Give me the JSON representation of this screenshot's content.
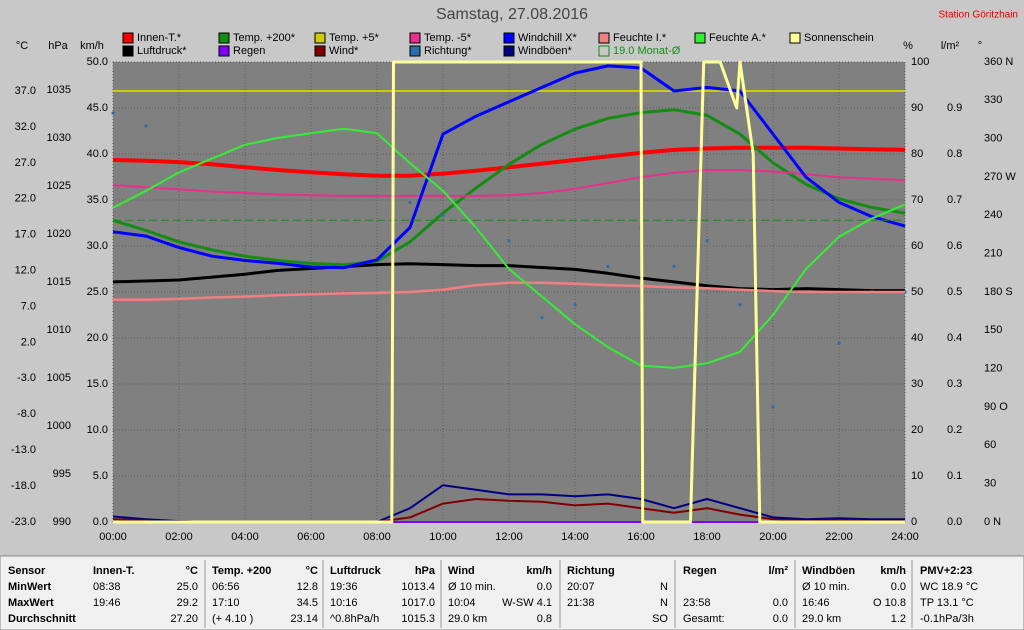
{
  "chart_data": {
    "type": "line",
    "title": "Samstag, 27.08.2016",
    "station": "Station Göritzhain",
    "x": [
      0,
      1,
      2,
      3,
      4,
      5,
      6,
      7,
      8,
      9,
      10,
      11,
      12,
      13,
      14,
      15,
      16,
      17,
      18,
      19,
      20,
      21,
      22,
      23,
      24
    ],
    "xlim": [
      0,
      24
    ],
    "xticks": [
      {
        "value": 0,
        "label": "00:00"
      },
      {
        "value": 2,
        "label": "02:00"
      },
      {
        "value": 4,
        "label": "04:00"
      },
      {
        "value": 6,
        "label": "06:00"
      },
      {
        "value": 8,
        "label": "08:00"
      },
      {
        "value": 10,
        "label": "10:00"
      },
      {
        "value": 12,
        "label": "12:00"
      },
      {
        "value": 14,
        "label": "14:00"
      },
      {
        "value": 16,
        "label": "16:00"
      },
      {
        "value": 18,
        "label": "18:00"
      },
      {
        "value": 20,
        "label": "20:00"
      },
      {
        "value": 22,
        "label": "22:00"
      },
      {
        "value": 24,
        "label": "24:00"
      }
    ],
    "grid": true,
    "axes": [
      {
        "id": "c",
        "label": "°C",
        "lim": [
          -23,
          41.04
        ],
        "ticks": [
          {
            "value": -23,
            "label": "-23.0"
          },
          {
            "value": -18,
            "label": "-18.0"
          },
          {
            "value": -13,
            "label": "-13.0"
          },
          {
            "value": -8,
            "label": "-8.0"
          },
          {
            "value": -3,
            "label": "-3.0"
          },
          {
            "value": 2,
            "label": "2.0"
          },
          {
            "value": 7,
            "label": "7.0"
          },
          {
            "value": 12,
            "label": "12.0"
          },
          {
            "value": 17,
            "label": "17.0"
          },
          {
            "value": 22,
            "label": "22.0"
          },
          {
            "value": 27,
            "label": "27.0"
          },
          {
            "value": 32,
            "label": "32.0"
          },
          {
            "value": 37,
            "label": "37.0"
          }
        ]
      },
      {
        "id": "p",
        "label": "hPa",
        "lim": [
          990,
          1037.9
        ],
        "ticks": [
          990,
          995,
          1000,
          1005,
          1010,
          1015,
          1020,
          1025,
          1030,
          1035
        ]
      },
      {
        "id": "w",
        "label": "km/h",
        "lim": [
          0,
          50
        ],
        "ticks": [
          {
            "value": 0,
            "label": "0.0"
          },
          {
            "value": 5,
            "label": "5.0"
          },
          {
            "value": 10,
            "label": "10.0"
          },
          {
            "value": 15,
            "label": "15.0"
          },
          {
            "value": 20,
            "label": "20.0"
          },
          {
            "value": 25,
            "label": "25.0"
          },
          {
            "value": 30,
            "label": "30.0"
          },
          {
            "value": 35,
            "label": "35.0"
          },
          {
            "value": 40,
            "label": "40.0"
          },
          {
            "value": 45,
            "label": "45.0"
          },
          {
            "value": 50,
            "label": "50.0"
          }
        ]
      },
      {
        "id": "h",
        "label": "%",
        "lim": [
          0,
          100
        ],
        "ticks": [
          0,
          10,
          20,
          30,
          40,
          50,
          60,
          70,
          80,
          90,
          100
        ]
      },
      {
        "id": "r",
        "label": "l/m²",
        "lim": [
          0,
          1.0
        ],
        "ticks": [
          {
            "value": 0,
            "label": "0.0"
          },
          {
            "value": 0.1,
            "label": "0.1"
          },
          {
            "value": 0.2,
            "label": "0.2"
          },
          {
            "value": 0.3,
            "label": "0.3"
          },
          {
            "value": 0.4,
            "label": "0.4"
          },
          {
            "value": 0.5,
            "label": "0.5"
          },
          {
            "value": 0.6,
            "label": "0.6"
          },
          {
            "value": 0.7,
            "label": "0.7"
          },
          {
            "value": 0.8,
            "label": "0.8"
          },
          {
            "value": 0.9,
            "label": "0.9"
          }
        ]
      },
      {
        "id": "d",
        "label": "°",
        "lim": [
          0,
          360
        ],
        "ticks": [
          {
            "value": 0,
            "label": "0 N"
          },
          30,
          60,
          {
            "value": 90,
            "label": "90 O"
          },
          120,
          150,
          {
            "value": 180,
            "label": "180 S"
          },
          210,
          240,
          {
            "value": 270,
            "label": "270 W"
          },
          300,
          330,
          {
            "value": 360,
            "label": "360 N"
          }
        ]
      }
    ],
    "series": [
      {
        "name": "Innen-T.*",
        "color": "#ff0000",
        "axis": "c",
        "width": 4,
        "values": [
          27.4,
          27.3,
          27.1,
          26.8,
          26.4,
          26.0,
          25.7,
          25.4,
          25.2,
          25.2,
          25.5,
          25.9,
          26.4,
          26.9,
          27.4,
          27.9,
          28.4,
          28.8,
          29.0,
          29.1,
          29.1,
          29.1,
          29.0,
          28.9,
          28.8
        ]
      },
      {
        "name": "Luftdruck*",
        "color": "#000000",
        "axis": "p",
        "width": 3,
        "values": [
          1015.0,
          1015.1,
          1015.2,
          1015.5,
          1015.8,
          1016.2,
          1016.4,
          1016.6,
          1016.8,
          1016.9,
          1016.8,
          1016.7,
          1016.7,
          1016.5,
          1016.3,
          1015.9,
          1015.4,
          1015.0,
          1014.6,
          1014.3,
          1014.2,
          1014.3,
          1014.2,
          1014.1,
          1014.1
        ]
      },
      {
        "name": "Temp. +200*",
        "color": "#148c14",
        "axis": "c",
        "width": 3,
        "values": [
          19.0,
          17.6,
          16.0,
          14.9,
          14.0,
          13.4,
          13.0,
          12.8,
          13.3,
          16.0,
          20.0,
          23.5,
          26.8,
          29.6,
          31.7,
          33.2,
          34.0,
          34.4,
          33.6,
          31.0,
          27.0,
          24.0,
          22.0,
          20.8,
          20.0
        ]
      },
      {
        "name": "Regen",
        "color": "#8000ff",
        "axis": "r",
        "width": 2,
        "values": [
          0,
          0,
          0,
          0,
          0,
          0,
          0,
          0,
          0,
          0,
          0,
          0,
          0,
          0,
          0,
          0,
          0,
          0,
          0,
          0,
          0,
          0,
          0,
          0,
          0
        ]
      },
      {
        "name": "Temp. +5*",
        "color": "#cccc00",
        "axis": "c",
        "width": 2,
        "values": [
          37.0,
          37.0,
          37.0,
          37.0,
          37.0,
          37.0,
          37.0,
          37.0,
          37.0,
          37.0,
          37.0,
          37.0,
          37.0,
          37.0,
          37.0,
          37.0,
          37.0,
          37.0,
          37.0,
          37.0,
          37.0,
          37.0,
          37.0,
          37.0,
          37.0
        ]
      },
      {
        "name": "Wind*",
        "color": "#800000",
        "axis": "w",
        "width": 2,
        "values": [
          0.3,
          0.2,
          0.1,
          0,
          0,
          0,
          0,
          0,
          0,
          0.5,
          2.0,
          2.5,
          2.3,
          2.2,
          1.8,
          2.0,
          1.5,
          1.0,
          1.5,
          0.8,
          0.3,
          0.2,
          0.2,
          0.2,
          0.2
        ]
      },
      {
        "name": "Temp. -5*",
        "color": "#e6308c",
        "axis": "c",
        "width": 2,
        "values": [
          23.9,
          23.6,
          23.3,
          23.0,
          22.8,
          22.6,
          22.5,
          22.4,
          22.4,
          22.4,
          22.4,
          22.4,
          22.5,
          22.8,
          23.4,
          24.2,
          25.0,
          25.6,
          26.0,
          26.0,
          25.8,
          25.4,
          25.0,
          24.8,
          24.6
        ]
      },
      {
        "name": "Richtung*",
        "color": "#2a6eb0",
        "axis": "d",
        "style": "dots",
        "values": [
          320,
          310,
          null,
          null,
          null,
          null,
          null,
          null,
          null,
          250,
          240,
          230,
          220,
          160,
          170,
          200,
          230,
          200,
          220,
          170,
          90,
          null,
          140,
          180,
          180
        ]
      },
      {
        "name": "Windchill X*",
        "color": "#0000ff",
        "axis": "c",
        "width": 3,
        "values": [
          17.4,
          16.8,
          15.2,
          14.0,
          13.4,
          13.0,
          12.5,
          12.4,
          13.5,
          18.0,
          31.0,
          33.5,
          35.5,
          37.5,
          39.5,
          40.5,
          40.2,
          37.0,
          37.5,
          37.0,
          31.0,
          25.0,
          21.5,
          19.5,
          18.2
        ]
      },
      {
        "name": "Windböen*",
        "color": "#000080",
        "axis": "w",
        "width": 2,
        "values": [
          0.6,
          0.3,
          0.1,
          0,
          0,
          0,
          0,
          0,
          0,
          1.5,
          4.0,
          3.5,
          3.0,
          3.0,
          2.8,
          3.0,
          2.5,
          1.5,
          2.5,
          1.5,
          0.5,
          0.3,
          0.4,
          0.3,
          0.3
        ]
      },
      {
        "name": "Feuchte I.*",
        "color": "#f08080",
        "axis": "h",
        "width": 2.5,
        "values": [
          48.3,
          48.3,
          48.5,
          48.8,
          49.0,
          49.3,
          49.5,
          49.7,
          49.8,
          50.0,
          50.5,
          51.5,
          52.0,
          52.0,
          51.8,
          51.5,
          51.3,
          51.0,
          50.8,
          50.5,
          50.2,
          50.0,
          50.0,
          50.0,
          50.0
        ]
      },
      {
        "name": "19.0 Monat-Ø",
        "color": "#148c14",
        "axis": "c",
        "width": 1,
        "dashed": true,
        "values": [
          19.0,
          19.0,
          19.0,
          19.0,
          19.0,
          19.0,
          19.0,
          19.0,
          19.0,
          19.0,
          19.0,
          19.0,
          19.0,
          19.0,
          19.0,
          19.0,
          19.0,
          19.0,
          19.0,
          19.0,
          19.0,
          19.0,
          19.0,
          19.0,
          19.0
        ]
      },
      {
        "name": "Feuchte A.*",
        "color": "#33ee33",
        "axis": "h",
        "width": 2,
        "values": [
          68.3,
          72,
          76,
          79,
          82,
          83.5,
          84.5,
          85.5,
          84.5,
          78,
          72,
          64,
          55,
          49,
          43,
          38,
          34,
          33.5,
          34.5,
          37,
          45,
          55,
          62,
          66,
          69
        ]
      },
      {
        "name": "Sonnenschein",
        "color": "#ffff99",
        "axis": "h",
        "width": 3,
        "x": [
          0,
          8.45,
          8.5,
          16.0,
          16.05,
          17.5,
          17.9,
          18.4,
          18.9,
          19.0,
          19.4,
          19.6,
          24
        ],
        "values": [
          0,
          0,
          100,
          100,
          0,
          0,
          100,
          100,
          90,
          100,
          80,
          0,
          0
        ]
      }
    ]
  },
  "table": {
    "columns": [
      {
        "title": "Sensor"
      },
      {
        "title": "Innen-T.",
        "unit": "°C"
      },
      {
        "title": "Temp. +200",
        "unit": "°C"
      },
      {
        "title": "Luftdruck",
        "unit": "hPa"
      },
      {
        "title": "Wind",
        "unit": "km/h"
      },
      {
        "title": "Richtung"
      },
      {
        "title": "Regen",
        "unit": "l/m²"
      },
      {
        "title": "Windböen",
        "unit": "km/h"
      },
      {
        "title": "PMV+2:23"
      }
    ],
    "rows": [
      {
        "label": "MinWert",
        "cells": [
          [
            "08:38",
            "25.0"
          ],
          [
            "06:56",
            "12.8"
          ],
          [
            "19:36",
            "1013.4"
          ],
          [
            "Ø 10 min.",
            "0.0"
          ],
          [
            "20:07",
            "N"
          ],
          [],
          [
            "Ø 10 min.",
            "0.0"
          ],
          [
            "WC 18.9 °C"
          ]
        ]
      },
      {
        "label": "MaxWert",
        "cells": [
          [
            "19:46",
            "29.2"
          ],
          [
            "17:10",
            "34.5"
          ],
          [
            "10:16",
            "1017.0"
          ],
          [
            "10:04",
            "W-SW 4.1"
          ],
          [
            "21:38",
            "N"
          ],
          [
            "23:58",
            "0.0"
          ],
          [
            "16:46",
            "O 10.8"
          ],
          [
            "TP 13.1 °C"
          ]
        ]
      },
      {
        "label": "Durchschnitt",
        "cells": [
          [
            null,
            "27.20"
          ],
          [
            "(+ 4.10 )",
            "23.14"
          ],
          [
            "^0.8hPa/h",
            "1015.3"
          ],
          [
            "29.0 km",
            "0.8"
          ],
          [
            null,
            "SO"
          ],
          [
            "Gesamt:",
            "0.0"
          ],
          [
            "29.0 km",
            "1.2"
          ],
          [
            "-0.1hPa/3h"
          ]
        ]
      }
    ]
  }
}
